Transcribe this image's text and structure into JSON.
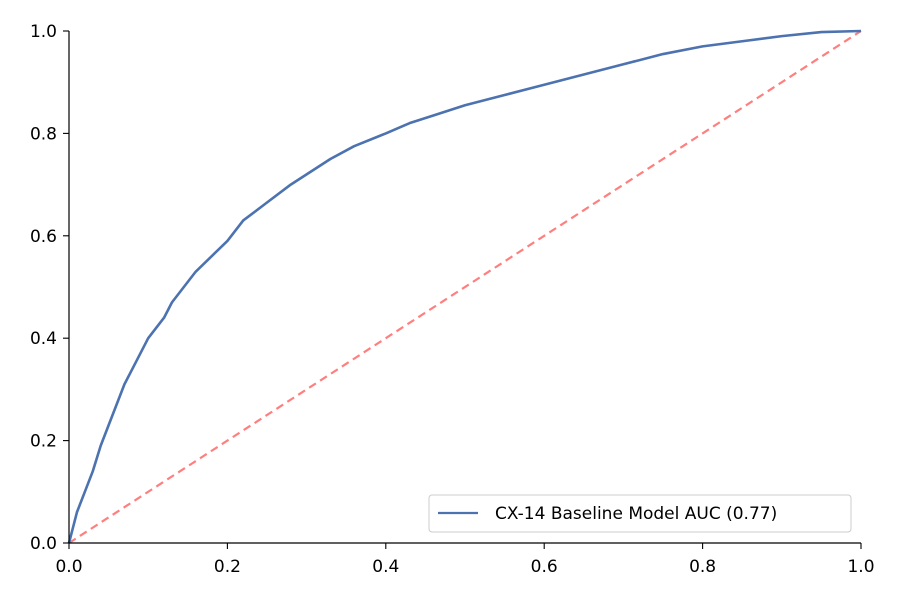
{
  "chart_data": {
    "type": "line",
    "title": "",
    "xlabel": "",
    "ylabel": "",
    "xlim": [
      0.0,
      1.0
    ],
    "ylim": [
      0.0,
      1.0
    ],
    "xticks": [
      "0.0",
      "0.2",
      "0.4",
      "0.6",
      "0.8",
      "1.0"
    ],
    "yticks": [
      "0.0",
      "0.2",
      "0.4",
      "0.6",
      "0.8",
      "1.0"
    ],
    "grid": false,
    "legend_position": "lower-right",
    "series": [
      {
        "name": "CX-14 Baseline Model AUC (0.77)",
        "color": "#4c72b0",
        "style": "solid",
        "x": [
          0.0,
          0.005,
          0.01,
          0.02,
          0.03,
          0.04,
          0.05,
          0.06,
          0.07,
          0.08,
          0.09,
          0.1,
          0.11,
          0.12,
          0.13,
          0.14,
          0.15,
          0.16,
          0.18,
          0.2,
          0.22,
          0.25,
          0.28,
          0.3,
          0.33,
          0.36,
          0.4,
          0.43,
          0.46,
          0.5,
          0.55,
          0.6,
          0.65,
          0.7,
          0.75,
          0.8,
          0.85,
          0.9,
          0.95,
          1.0
        ],
        "y": [
          0.0,
          0.03,
          0.06,
          0.1,
          0.14,
          0.19,
          0.23,
          0.27,
          0.31,
          0.34,
          0.37,
          0.4,
          0.42,
          0.44,
          0.47,
          0.49,
          0.51,
          0.53,
          0.56,
          0.59,
          0.63,
          0.665,
          0.7,
          0.72,
          0.75,
          0.775,
          0.8,
          0.82,
          0.835,
          0.855,
          0.875,
          0.895,
          0.915,
          0.935,
          0.955,
          0.97,
          0.98,
          0.99,
          0.998,
          1.0
        ]
      },
      {
        "name": "",
        "color": "#ff7f7f",
        "style": "dashed",
        "x": [
          0.0,
          1.0
        ],
        "y": [
          0.0,
          1.0
        ]
      }
    ]
  }
}
